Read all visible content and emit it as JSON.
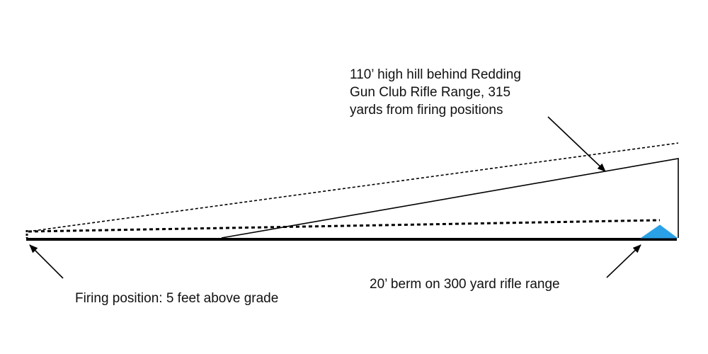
{
  "hill_label_lines": [
    "110’ high hill behind Redding",
    "Gun Club Rifle Range, 315",
    "yards from firing positions"
  ],
  "berm_label": "20’ berm on 300 yard rifle range",
  "firing_label": "Firing position: 5 feet above grade",
  "colors": {
    "line": "#000000",
    "text": "#111111",
    "berm_fill": "#2aa1e6",
    "background": "#ffffff"
  }
}
